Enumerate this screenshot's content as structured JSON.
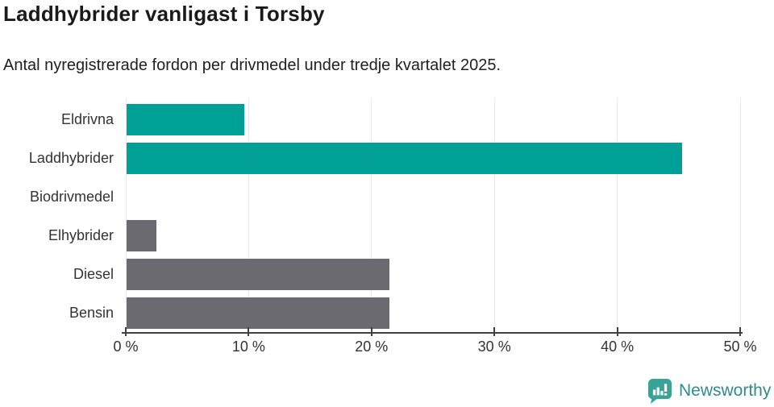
{
  "title": "Laddhybrider vanligast i Torsby",
  "subtitle": "Antal nyregistrerade fordon per drivmedel under tredje kvartalet 2025.",
  "branding": {
    "name": "Newsworthy",
    "icon": "newsworthy-speech-bubble-bar-chart-icon",
    "color": "#2f8c8a"
  },
  "theme": {
    "highlight_color": "#00A096",
    "default_color": "#6A6A70",
    "gridline_color": "#e8e8e8",
    "axis_color": "#3f3f44"
  },
  "chart_data": {
    "type": "bar",
    "orientation": "horizontal",
    "title": "Laddhybrider vanligast i Torsby",
    "subtitle": "Antal nyregistrerade fordon per drivmedel under tredje kvartalet 2025.",
    "categories": [
      "Eldrivna",
      "Laddhybrider",
      "Biodrivmedel",
      "Elhybrider",
      "Diesel",
      "Bensin"
    ],
    "values": [
      9.6,
      45.2,
      0,
      2.4,
      21.4,
      21.4
    ],
    "unit": "%",
    "bar_colors": [
      "#00A096",
      "#00A096",
      "#6A6A70",
      "#6A6A70",
      "#6A6A70",
      "#6A6A70"
    ],
    "xlim": [
      0,
      50
    ],
    "x_ticks": [
      0,
      10,
      20,
      30,
      40,
      50
    ],
    "x_tick_labels": [
      "0 %",
      "10 %",
      "20 %",
      "30 %",
      "40 %",
      "50 %"
    ],
    "xlabel": "",
    "ylabel": "",
    "grid": true,
    "legend": false
  }
}
